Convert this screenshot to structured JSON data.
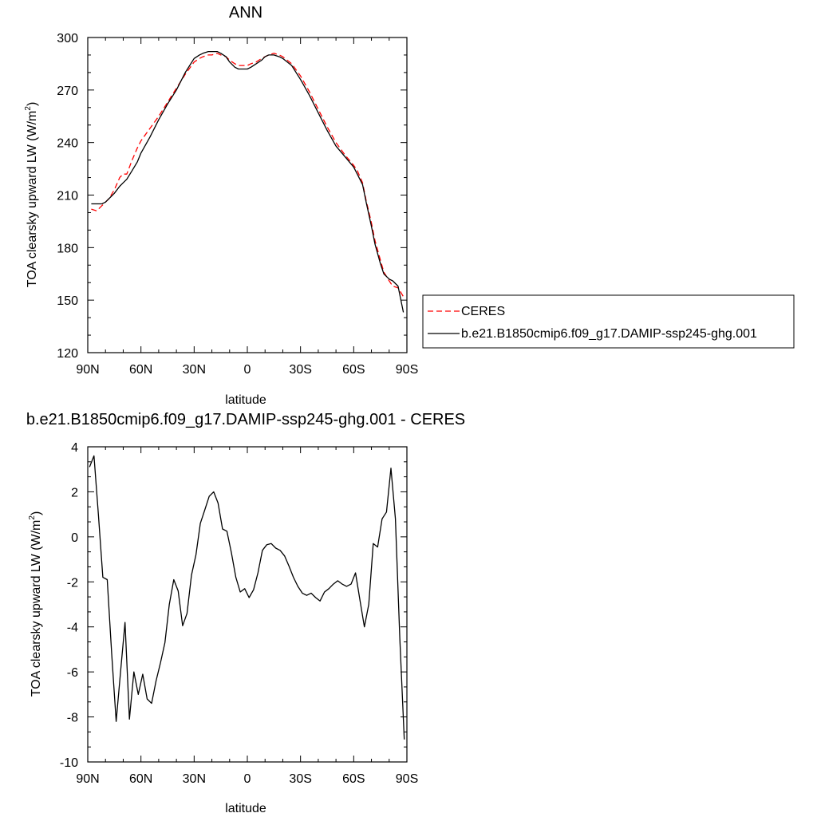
{
  "chart_data": [
    {
      "type": "line",
      "title": "ANN",
      "xlabel": "latitude",
      "ylabel": "TOA clearsky upward LW (W/m",
      "ylabel_sup": "2",
      "ylabel_tail": ")",
      "xlim": [
        -90,
        90
      ],
      "ylim": [
        120,
        300
      ],
      "xticks": [
        -90,
        -60,
        -30,
        0,
        30,
        60,
        90
      ],
      "xticklabels": [
        "90N",
        "60N",
        "30N",
        "0",
        "30S",
        "60S",
        "90S"
      ],
      "yticks": [
        120,
        150,
        180,
        210,
        240,
        270,
        300
      ],
      "yticklabels": [
        "120",
        "150",
        "180",
        "210",
        "240",
        "270",
        "300"
      ],
      "legend": {
        "placement": "right",
        "entries": [
          {
            "label": "CERES",
            "color": "#ff0000",
            "dash": "dashed"
          },
          {
            "label": "b.e21.B1850cmip6.f09_g17.DAMIP-ssp245-ghg.001",
            "color": "#000000",
            "dash": "solid"
          }
        ]
      },
      "series": [
        {
          "name": "CERES",
          "color": "#ff0000",
          "dash": "dashed",
          "x": [
            -88,
            -85,
            -82,
            -80,
            -78,
            -75,
            -72,
            -70,
            -68,
            -65,
            -62,
            -60,
            -55,
            -50,
            -45,
            -40,
            -35,
            -30,
            -27,
            -25,
            -22,
            -20,
            -17,
            -15,
            -12,
            -10,
            -7,
            -5,
            -2,
            0,
            2,
            5,
            8,
            10,
            12,
            15,
            18,
            20,
            25,
            30,
            35,
            40,
            45,
            50,
            55,
            60,
            62,
            65,
            67,
            70,
            72,
            75,
            77,
            80,
            82,
            85,
            88
          ],
          "y": [
            202,
            201,
            204,
            206,
            208,
            213,
            220,
            222,
            222,
            230,
            237,
            241,
            248,
            255,
            263,
            271,
            279,
            286,
            288,
            289,
            290,
            290,
            291,
            290,
            289,
            287,
            285,
            284,
            284,
            284,
            285,
            286,
            288,
            289,
            290,
            291,
            290,
            289,
            285,
            278,
            269,
            259,
            249,
            240,
            233,
            227,
            224,
            217,
            207,
            194,
            184,
            173,
            166,
            161,
            158,
            157,
            152
          ]
        },
        {
          "name": "b.e21.B1850cmip6.f09_g17.DAMIP-ssp245-ghg.001",
          "color": "#000000",
          "dash": "solid",
          "x": [
            -88,
            -85,
            -82,
            -80,
            -78,
            -75,
            -72,
            -70,
            -68,
            -65,
            -62,
            -60,
            -55,
            -50,
            -45,
            -40,
            -35,
            -30,
            -27,
            -25,
            -22,
            -20,
            -17,
            -15,
            -12,
            -10,
            -7,
            -5,
            -2,
            0,
            2,
            5,
            8,
            10,
            12,
            15,
            18,
            20,
            25,
            30,
            35,
            40,
            45,
            50,
            55,
            60,
            62,
            65,
            67,
            70,
            72,
            75,
            77,
            80,
            82,
            85,
            88
          ],
          "y": [
            205,
            205,
            205,
            206,
            208,
            211,
            215,
            217,
            219,
            224,
            229,
            234,
            243,
            253,
            262,
            270,
            280,
            288,
            290,
            291,
            292,
            292,
            292,
            291,
            289,
            286,
            283,
            282,
            282,
            282,
            283,
            285,
            287,
            289,
            290,
            290,
            289,
            288,
            284,
            276,
            267,
            257,
            247,
            238,
            232,
            226,
            222,
            216,
            206,
            192,
            182,
            171,
            165,
            162,
            161,
            158,
            143
          ]
        }
      ]
    },
    {
      "type": "line",
      "title": "b.e21.B1850cmip6.f09_g17.DAMIP-ssp245-ghg.001 - CERES",
      "xlabel": "latitude",
      "ylabel": "TOA clearsky upward LW (W/m",
      "ylabel_sup": "2",
      "ylabel_tail": ")",
      "xlim": [
        -90,
        90
      ],
      "ylim": [
        -10,
        4
      ],
      "xticks": [
        -90,
        -60,
        -30,
        0,
        30,
        60,
        90
      ],
      "xticklabels": [
        "90N",
        "60N",
        "30N",
        "0",
        "30S",
        "60S",
        "90S"
      ],
      "yticks": [
        -10,
        -8,
        -6,
        -4,
        -2,
        0,
        2,
        4
      ],
      "yticklabels": [
        "-10",
        "-8",
        "-6",
        "-4",
        "-2",
        "0",
        "2",
        "4"
      ],
      "series": [
        {
          "color": "#000000",
          "dash": "solid",
          "x": [
            -89,
            -86.5,
            -84,
            -81.5,
            -79,
            -76.5,
            -74,
            -71.5,
            -69,
            -66.5,
            -64,
            -61.5,
            -59,
            -56.5,
            -54,
            -51.5,
            -49,
            -46.5,
            -44,
            -41.5,
            -39,
            -36.5,
            -34,
            -31.5,
            -29,
            -26.5,
            -24,
            -21.5,
            -19,
            -16.5,
            -14,
            -11.5,
            -9,
            -6.5,
            -4,
            -1.5,
            1,
            3.5,
            6,
            8.5,
            11,
            13.5,
            16,
            18.5,
            21,
            23.5,
            26,
            28.5,
            31,
            33.5,
            36,
            38.5,
            41,
            43.5,
            46,
            48.5,
            51,
            53.5,
            56,
            58.5,
            61,
            63.5,
            66,
            68.5,
            71,
            73.5,
            76,
            78.5,
            81,
            83.5,
            86,
            88.5
          ],
          "y": [
            3.1,
            3.6,
            1.0,
            -1.8,
            -1.9,
            -5.2,
            -8.2,
            -6.0,
            -3.8,
            -8.1,
            -6.0,
            -7.0,
            -6.1,
            -7.2,
            -7.4,
            -6.4,
            -5.6,
            -4.7,
            -3.0,
            -1.9,
            -2.4,
            -3.95,
            -3.4,
            -1.7,
            -0.8,
            0.6,
            1.2,
            1.8,
            2.0,
            1.5,
            0.35,
            0.25,
            -0.7,
            -1.8,
            -2.45,
            -2.3,
            -2.7,
            -2.35,
            -1.6,
            -0.6,
            -0.35,
            -0.3,
            -0.5,
            -0.6,
            -0.85,
            -1.3,
            -1.8,
            -2.2,
            -2.5,
            -2.6,
            -2.5,
            -2.7,
            -2.85,
            -2.45,
            -2.3,
            -2.1,
            -1.95,
            -2.1,
            -2.2,
            -2.1,
            -1.6,
            -2.8,
            -4.0,
            -3.0,
            -0.3,
            -0.45,
            0.8,
            1.1,
            3.05,
            0.8,
            -4.5,
            -9.0
          ]
        }
      ]
    }
  ]
}
